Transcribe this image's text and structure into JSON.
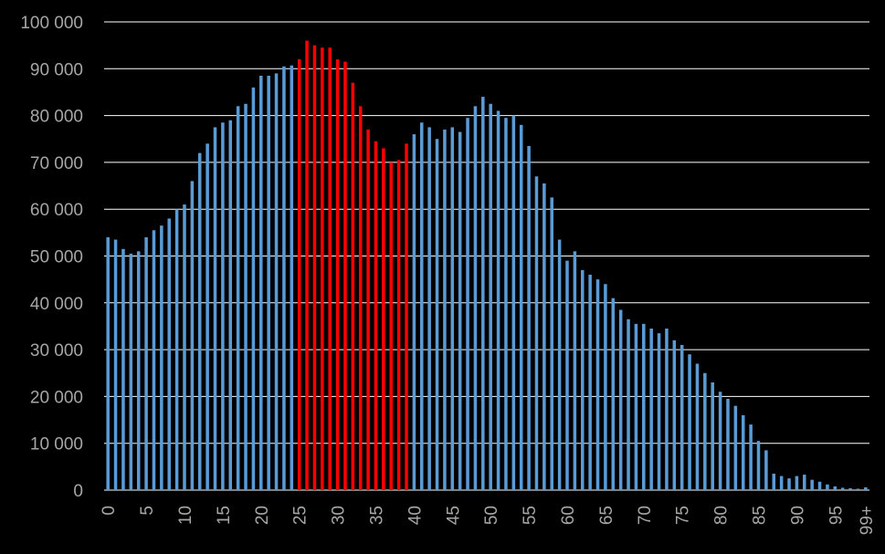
{
  "colors": {
    "background": "#000000",
    "bar_default": "#5b9bd5",
    "bar_highlight": "#ff0000",
    "gridline": "#ffffff",
    "tick_text": "#a6a6a6"
  },
  "chart_data": {
    "type": "bar",
    "title": "",
    "xlabel": "",
    "ylabel": "",
    "ylim": [
      0,
      100000
    ],
    "y_ticks": [
      0,
      10000,
      20000,
      30000,
      40000,
      50000,
      60000,
      70000,
      80000,
      90000,
      100000
    ],
    "y_tick_labels": [
      "0",
      "10 000",
      "20 000",
      "30 000",
      "40 000",
      "50 000",
      "60 000",
      "70 000",
      "80 000",
      "90 000",
      "100 000"
    ],
    "grid": true,
    "categories": [
      "0",
      "1",
      "2",
      "3",
      "4",
      "5",
      "6",
      "7",
      "8",
      "9",
      "10",
      "11",
      "12",
      "13",
      "14",
      "15",
      "16",
      "17",
      "18",
      "19",
      "20",
      "21",
      "22",
      "23",
      "24",
      "25",
      "26",
      "27",
      "28",
      "29",
      "30",
      "31",
      "32",
      "33",
      "34",
      "35",
      "36",
      "37",
      "38",
      "39",
      "40",
      "41",
      "42",
      "43",
      "44",
      "45",
      "46",
      "47",
      "48",
      "49",
      "50",
      "51",
      "52",
      "53",
      "54",
      "55",
      "56",
      "57",
      "58",
      "59",
      "60",
      "61",
      "62",
      "63",
      "64",
      "65",
      "66",
      "67",
      "68",
      "69",
      "70",
      "71",
      "72",
      "73",
      "74",
      "75",
      "76",
      "77",
      "78",
      "79",
      "80",
      "81",
      "82",
      "83",
      "84",
      "85",
      "86",
      "87",
      "88",
      "89",
      "90",
      "91",
      "92",
      "93",
      "94",
      "95",
      "96",
      "97",
      "98",
      "99+"
    ],
    "x_tick_labels": [
      "0",
      "5",
      "10",
      "15",
      "20",
      "25",
      "30",
      "35",
      "40",
      "45",
      "50",
      "55",
      "60",
      "65",
      "70",
      "75",
      "80",
      "85",
      "90",
      "95",
      "99+"
    ],
    "x_tick_categories": [
      "0",
      "5",
      "10",
      "15",
      "20",
      "25",
      "30",
      "35",
      "40",
      "45",
      "50",
      "55",
      "60",
      "65",
      "70",
      "75",
      "80",
      "85",
      "90",
      "95",
      "99+"
    ],
    "values": [
      54000,
      53500,
      51500,
      50500,
      51000,
      54000,
      55500,
      56500,
      58000,
      60000,
      61000,
      66000,
      72000,
      74000,
      77500,
      78500,
      79000,
      82000,
      82500,
      86000,
      88500,
      88500,
      89000,
      90500,
      90700,
      92000,
      96000,
      95000,
      94500,
      94500,
      92000,
      91500,
      87000,
      82000,
      77000,
      74500,
      73000,
      70000,
      70500,
      74000,
      76000,
      78500,
      77500,
      75000,
      77000,
      77500,
      76500,
      79500,
      82000,
      84000,
      82500,
      81000,
      79500,
      80000,
      78000,
      73500,
      67000,
      65500,
      62500,
      53500,
      49000,
      51000,
      47000,
      46000,
      45000,
      44000,
      41000,
      38500,
      36500,
      35500,
      35500,
      34500,
      33500,
      34500,
      32000,
      31000,
      29000,
      27000,
      25000,
      23000,
      21000,
      19500,
      18000,
      16000,
      14000,
      10500,
      8500,
      3500,
      3000,
      2500,
      3000,
      3300,
      2200,
      1800,
      1200,
      800,
      500,
      400,
      300,
      600
    ],
    "highlight_range": [
      "25",
      "39"
    ]
  }
}
